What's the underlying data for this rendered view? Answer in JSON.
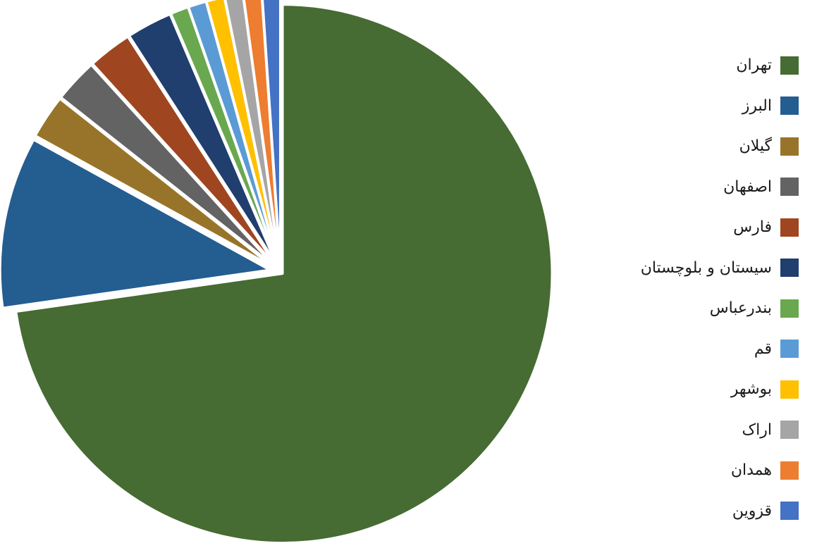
{
  "chart_data": {
    "type": "pie",
    "title": "",
    "categories": [
      "تهران",
      "البرز",
      "گیلان",
      "اصفهان",
      "فارس",
      "سیستان و بلوچستان",
      "بندرعباس",
      "قم",
      "بوشهر",
      "اراک",
      "همدان",
      "قزوین"
    ],
    "values": [
      75.0,
      10.6,
      2.7,
      2.7,
      2.7,
      2.8,
      1.1,
      1.1,
      1.1,
      1.1,
      1.1,
      1.1
    ],
    "colors": [
      "#466B33",
      "#245D90",
      "#98742A",
      "#636363",
      "#9F4621",
      "#203E6E",
      "#6AA84F",
      "#5B9BD5",
      "#FFC000",
      "#A5A5A5",
      "#ED7D31",
      "#4472C4"
    ],
    "start_angle_deg": 0,
    "direction": "clockwise",
    "exploded": true,
    "legend_position": "right"
  }
}
